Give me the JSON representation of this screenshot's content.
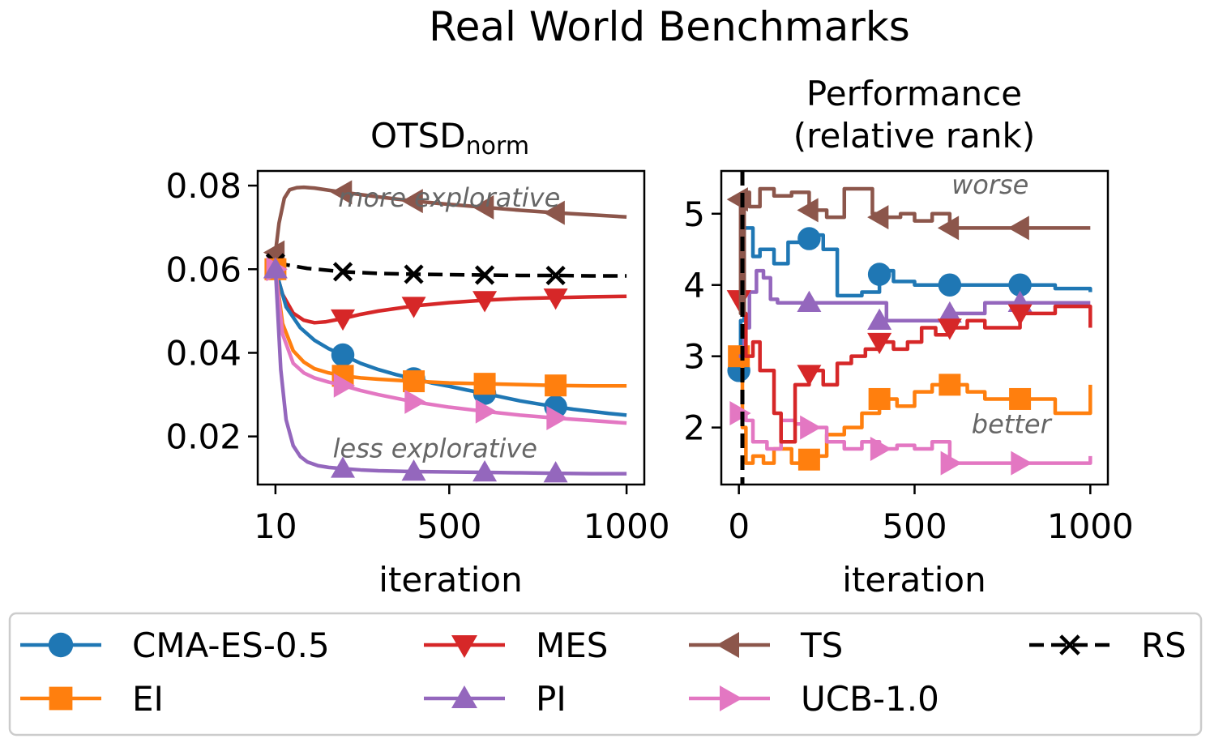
{
  "figure_title": "Real World Benchmarks",
  "chart_data": [
    {
      "type": "line",
      "title": "OTSD",
      "title_sub": "norm",
      "xlabel": "iteration",
      "ylabel": "",
      "xlim": [
        -40,
        1050
      ],
      "ylim": [
        0.0085,
        0.0835
      ],
      "xticks": [
        10,
        500,
        1000
      ],
      "xtick_labels": [
        "10",
        "500",
        "1000"
      ],
      "yticks": [
        0.02,
        0.04,
        0.06,
        0.08
      ],
      "ytick_labels": [
        "0.02",
        "0.04",
        "0.06",
        "0.08"
      ],
      "annotations": [
        {
          "text": "more explorative",
          "x": 500,
          "y": 0.075
        },
        {
          "text": "less explorative",
          "x": 460,
          "y": 0.015
        }
      ],
      "series": [
        {
          "name": "CMA-ES-0.5",
          "key": "cma",
          "x": [
            10,
            40,
            80,
            120,
            160,
            200,
            250,
            300,
            350,
            400,
            450,
            500,
            550,
            600,
            650,
            700,
            750,
            800,
            850,
            900,
            950,
            1000
          ],
          "values": [
            0.06,
            0.051,
            0.046,
            0.043,
            0.041,
            0.0395,
            0.0375,
            0.036,
            0.0348,
            0.0338,
            0.0328,
            0.032,
            0.0311,
            0.0303,
            0.0294,
            0.0285,
            0.0278,
            0.0271,
            0.0265,
            0.026,
            0.0255,
            0.0251
          ],
          "markers_x": [
            200,
            400,
            600,
            800
          ],
          "markers_y": [
            0.0395,
            0.0338,
            0.0303,
            0.0271
          ]
        },
        {
          "name": "EI",
          "key": "ei",
          "x": [
            10,
            30,
            60,
            90,
            120,
            160,
            200,
            250,
            300,
            400,
            500,
            600,
            700,
            800,
            900,
            1000
          ],
          "values": [
            0.06,
            0.047,
            0.0405,
            0.0378,
            0.0362,
            0.0352,
            0.0345,
            0.034,
            0.0337,
            0.0332,
            0.0328,
            0.0326,
            0.0324,
            0.0322,
            0.0321,
            0.0321
          ],
          "markers_x": [
            10,
            200,
            400,
            600,
            800
          ],
          "markers_y": [
            0.06,
            0.0345,
            0.0332,
            0.0326,
            0.0322
          ]
        },
        {
          "name": "MES",
          "key": "mes",
          "x": [
            10,
            30,
            60,
            90,
            120,
            150,
            200,
            250,
            300,
            400,
            500,
            600,
            700,
            800,
            900,
            1000
          ],
          "values": [
            0.06,
            0.054,
            0.0495,
            0.0478,
            0.0472,
            0.0474,
            0.0482,
            0.0492,
            0.05,
            0.0512,
            0.052,
            0.0526,
            0.053,
            0.0532,
            0.0534,
            0.0535
          ],
          "markers_x": [
            200,
            400,
            600,
            800
          ],
          "markers_y": [
            0.0482,
            0.0512,
            0.0526,
            0.0532
          ]
        },
        {
          "name": "PI",
          "key": "pi",
          "x": [
            10,
            25,
            40,
            60,
            80,
            100,
            130,
            160,
            200,
            250,
            300,
            400,
            500,
            600,
            700,
            800,
            900,
            1000
          ],
          "values": [
            0.06,
            0.036,
            0.024,
            0.0178,
            0.0152,
            0.0139,
            0.013,
            0.0126,
            0.0123,
            0.012,
            0.0118,
            0.0116,
            0.0115,
            0.0114,
            0.0113,
            0.0112,
            0.0111,
            0.0111
          ],
          "markers_x": [
            10,
            200,
            400,
            600,
            800
          ],
          "markers_y": [
            0.06,
            0.0123,
            0.0116,
            0.0114,
            0.0112
          ]
        },
        {
          "name": "TS",
          "key": "ts",
          "x": [
            10,
            20,
            35,
            50,
            70,
            90,
            120,
            160,
            200,
            300,
            400,
            500,
            600,
            700,
            800,
            900,
            1000
          ],
          "values": [
            0.064,
            0.071,
            0.077,
            0.079,
            0.0795,
            0.0796,
            0.0794,
            0.0789,
            0.0784,
            0.0773,
            0.0763,
            0.0755,
            0.0748,
            0.0741,
            0.0735,
            0.073,
            0.0725
          ],
          "markers_x": [
            10,
            200,
            400,
            600,
            800
          ],
          "markers_y": [
            0.064,
            0.0784,
            0.0763,
            0.0748,
            0.0735
          ]
        },
        {
          "name": "UCB-1.0",
          "key": "ucb",
          "x": [
            10,
            30,
            60,
            90,
            120,
            160,
            200,
            250,
            300,
            400,
            500,
            600,
            700,
            800,
            900,
            1000
          ],
          "values": [
            0.06,
            0.0445,
            0.0375,
            0.0352,
            0.034,
            0.033,
            0.0322,
            0.031,
            0.03,
            0.0283,
            0.027,
            0.026,
            0.0251,
            0.0244,
            0.0238,
            0.0232
          ],
          "markers_x": [
            10,
            200,
            400,
            600,
            800
          ],
          "markers_y": [
            0.06,
            0.0322,
            0.0283,
            0.026,
            0.0244
          ]
        },
        {
          "name": "RS",
          "key": "rs",
          "x": [
            10,
            100,
            200,
            300,
            400,
            500,
            600,
            700,
            800,
            900,
            1000
          ],
          "values": [
            0.0615,
            0.0602,
            0.0594,
            0.059,
            0.0588,
            0.0587,
            0.0586,
            0.0585,
            0.0585,
            0.0584,
            0.0584
          ],
          "markers_x": [
            10,
            200,
            400,
            600,
            800
          ],
          "markers_y": [
            0.0615,
            0.0594,
            0.0588,
            0.0586,
            0.0585
          ]
        }
      ]
    },
    {
      "type": "line",
      "title": "Performance",
      "title_line2": "(relative rank)",
      "xlabel": "iteration",
      "ylabel": "",
      "xlim": [
        -50,
        1050
      ],
      "ylim": [
        1.2,
        5.6
      ],
      "xticks": [
        0,
        500,
        1000
      ],
      "xtick_labels": [
        "0",
        "500",
        "1000"
      ],
      "yticks": [
        2,
        3,
        4,
        5
      ],
      "ytick_labels": [
        "2",
        "3",
        "4",
        "5"
      ],
      "vline_x": 10,
      "annotations": [
        {
          "text": "worse",
          "x": 715,
          "y": 5.28
        },
        {
          "text": "better",
          "x": 775,
          "y": 1.92
        }
      ],
      "series": [
        {
          "name": "CMA-ES-0.5",
          "key": "cma",
          "x": [
            0,
            5,
            15,
            40,
            60,
            100,
            140,
            200,
            240,
            280,
            330,
            350,
            400,
            420,
            440,
            500,
            560,
            600,
            700,
            800,
            900,
            1000
          ],
          "values": [
            2.8,
            3.5,
            4.8,
            4.4,
            4.5,
            4.3,
            4.6,
            4.7,
            4.5,
            3.85,
            3.85,
            3.9,
            4.1,
            4.2,
            4.05,
            4.0,
            4.0,
            4.0,
            4.0,
            4.0,
            3.95,
            3.9
          ],
          "markers_x": [
            0,
            200,
            400,
            600,
            800
          ],
          "markers_y": [
            2.8,
            4.65,
            4.15,
            4.0,
            4.0
          ]
        },
        {
          "name": "EI",
          "key": "ei",
          "x": [
            0,
            10,
            20,
            40,
            70,
            100,
            150,
            200,
            250,
            300,
            350,
            400,
            450,
            500,
            550,
            600,
            650,
            700,
            800,
            900,
            950,
            1000
          ],
          "values": [
            3.0,
            2.0,
            1.5,
            1.6,
            1.5,
            1.7,
            1.5,
            1.6,
            1.9,
            2.0,
            2.2,
            2.4,
            2.3,
            2.5,
            2.6,
            2.6,
            2.5,
            2.4,
            2.4,
            2.2,
            2.2,
            2.6
          ],
          "markers_x": [
            0,
            200,
            400,
            600,
            800
          ],
          "markers_y": [
            3.0,
            1.55,
            2.4,
            2.6,
            2.4
          ]
        },
        {
          "name": "MES",
          "key": "mes",
          "x": [
            0,
            10,
            20,
            40,
            60,
            100,
            120,
            160,
            200,
            240,
            280,
            320,
            360,
            400,
            440,
            480,
            520,
            560,
            600,
            650,
            700,
            800,
            900,
            1000
          ],
          "values": [
            3.8,
            3.6,
            3.0,
            3.2,
            2.8,
            2.2,
            1.8,
            2.6,
            2.8,
            2.6,
            2.9,
            3.0,
            3.1,
            3.2,
            3.1,
            3.2,
            3.4,
            3.3,
            3.4,
            3.5,
            3.4,
            3.6,
            3.7,
            3.4
          ],
          "markers_x": [
            0,
            200,
            400,
            600,
            800
          ],
          "markers_y": [
            3.8,
            2.75,
            3.2,
            3.4,
            3.6
          ]
        },
        {
          "name": "PI",
          "key": "pi",
          "x": [
            0,
            15,
            30,
            50,
            70,
            90,
            110,
            200,
            300,
            380,
            420,
            500,
            600,
            700,
            800,
            900,
            1000
          ],
          "values": [
            3.0,
            3.4,
            3.9,
            4.2,
            4.1,
            3.8,
            3.75,
            3.75,
            3.75,
            3.75,
            3.5,
            3.5,
            3.6,
            3.75,
            3.75,
            3.75,
            3.75
          ],
          "markers_x": [
            200,
            400,
            600,
            800
          ],
          "markers_y": [
            3.75,
            3.5,
            3.6,
            3.75
          ]
        },
        {
          "name": "TS",
          "key": "ts",
          "x": [
            0,
            5,
            15,
            30,
            60,
            100,
            150,
            200,
            250,
            300,
            350,
            380,
            420,
            460,
            500,
            550,
            600,
            700,
            800,
            900,
            1000
          ],
          "values": [
            5.2,
            3.6,
            5.3,
            5.1,
            5.35,
            5.25,
            5.3,
            5.05,
            4.95,
            5.35,
            5.35,
            5.0,
            4.95,
            5.0,
            4.9,
            5.0,
            4.8,
            4.8,
            4.8,
            4.8,
            4.8
          ],
          "markers_x": [
            0,
            200,
            400,
            600,
            800
          ],
          "markers_y": [
            5.2,
            5.05,
            4.95,
            4.8,
            4.8
          ]
        },
        {
          "name": "UCB-1.0",
          "key": "ucb",
          "x": [
            0,
            20,
            40,
            80,
            120,
            160,
            200,
            250,
            300,
            350,
            400,
            450,
            500,
            550,
            600,
            700,
            800,
            900,
            1000
          ],
          "values": [
            2.2,
            2.1,
            1.8,
            1.7,
            2.1,
            2.05,
            2.0,
            1.8,
            1.7,
            1.8,
            1.7,
            1.75,
            1.7,
            1.8,
            1.5,
            1.5,
            1.5,
            1.5,
            1.6
          ],
          "markers_x": [
            0,
            200,
            400,
            600,
            800
          ],
          "markers_y": [
            2.2,
            2.0,
            1.7,
            1.5,
            1.5
          ]
        }
      ]
    }
  ],
  "legend": {
    "placement": "bottom",
    "entries": [
      {
        "key": "cma",
        "label": "CMA-ES-0.5"
      },
      {
        "key": "mes",
        "label": "MES"
      },
      {
        "key": "ts",
        "label": "TS"
      },
      {
        "key": "rs",
        "label": "RS"
      },
      {
        "key": "ei",
        "label": "EI"
      },
      {
        "key": "pi",
        "label": "PI"
      },
      {
        "key": "ucb",
        "label": "UCB-1.0"
      }
    ]
  },
  "series_styles": {
    "cma": {
      "color": "#1f77b4",
      "marker": "circle",
      "dash": "solid"
    },
    "ei": {
      "color": "#ff7f0e",
      "marker": "square",
      "dash": "solid"
    },
    "mes": {
      "color": "#d62728",
      "marker": "triangle-down",
      "dash": "solid"
    },
    "pi": {
      "color": "#9467bd",
      "marker": "triangle-up",
      "dash": "solid"
    },
    "ts": {
      "color": "#8c564b",
      "marker": "triangle-left",
      "dash": "solid"
    },
    "ucb": {
      "color": "#e377c2",
      "marker": "triangle-right",
      "dash": "solid"
    },
    "rs": {
      "color": "#000000",
      "marker": "x",
      "dash": "dashed"
    }
  }
}
